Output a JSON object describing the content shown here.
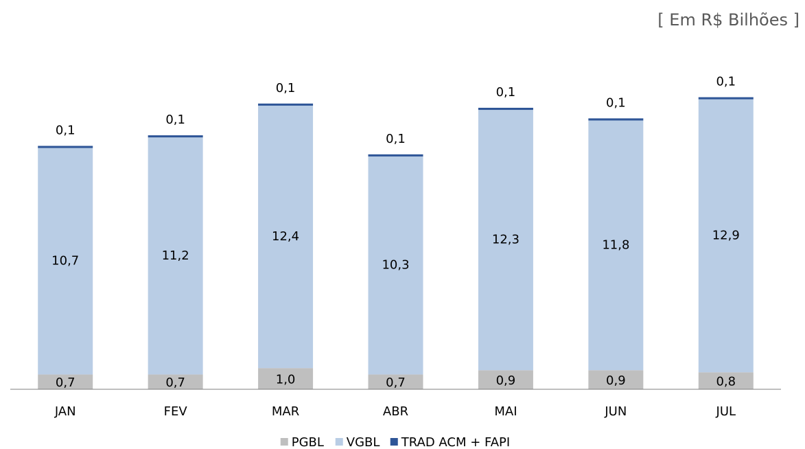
{
  "chart_data": {
    "type": "stacked-bar",
    "subtitle": "[ Em R$ Bilhões ]",
    "categories": [
      "JAN",
      "FEV",
      "MAR",
      "ABR",
      "MAI",
      "JUN",
      "JUL"
    ],
    "series": [
      {
        "name": "PGBL",
        "color": "#bfbfbf",
        "values": [
          0.7,
          0.7,
          1.0,
          0.7,
          0.9,
          0.9,
          0.8
        ],
        "value_labels": [
          "0,7",
          "0,7",
          "1,0",
          "0,7",
          "0,9",
          "0,9",
          "0,8"
        ]
      },
      {
        "name": "VGBL",
        "color": "#b9cde5",
        "values": [
          10.7,
          11.2,
          12.4,
          10.3,
          12.3,
          11.8,
          12.9
        ],
        "value_labels": [
          "10,7",
          "11,2",
          "12,4",
          "10,3",
          "12,3",
          "11,8",
          "12,9"
        ]
      },
      {
        "name": "TRAD ACM + FAPI",
        "color": "#2e5597",
        "values": [
          0.1,
          0.1,
          0.1,
          0.1,
          0.1,
          0.1,
          0.1
        ],
        "value_labels": [
          "0,1",
          "0,1",
          "0,1",
          "0,1",
          "0,1",
          "0,1",
          "0,1"
        ]
      }
    ],
    "ylim": [
      0,
      14.5
    ]
  }
}
